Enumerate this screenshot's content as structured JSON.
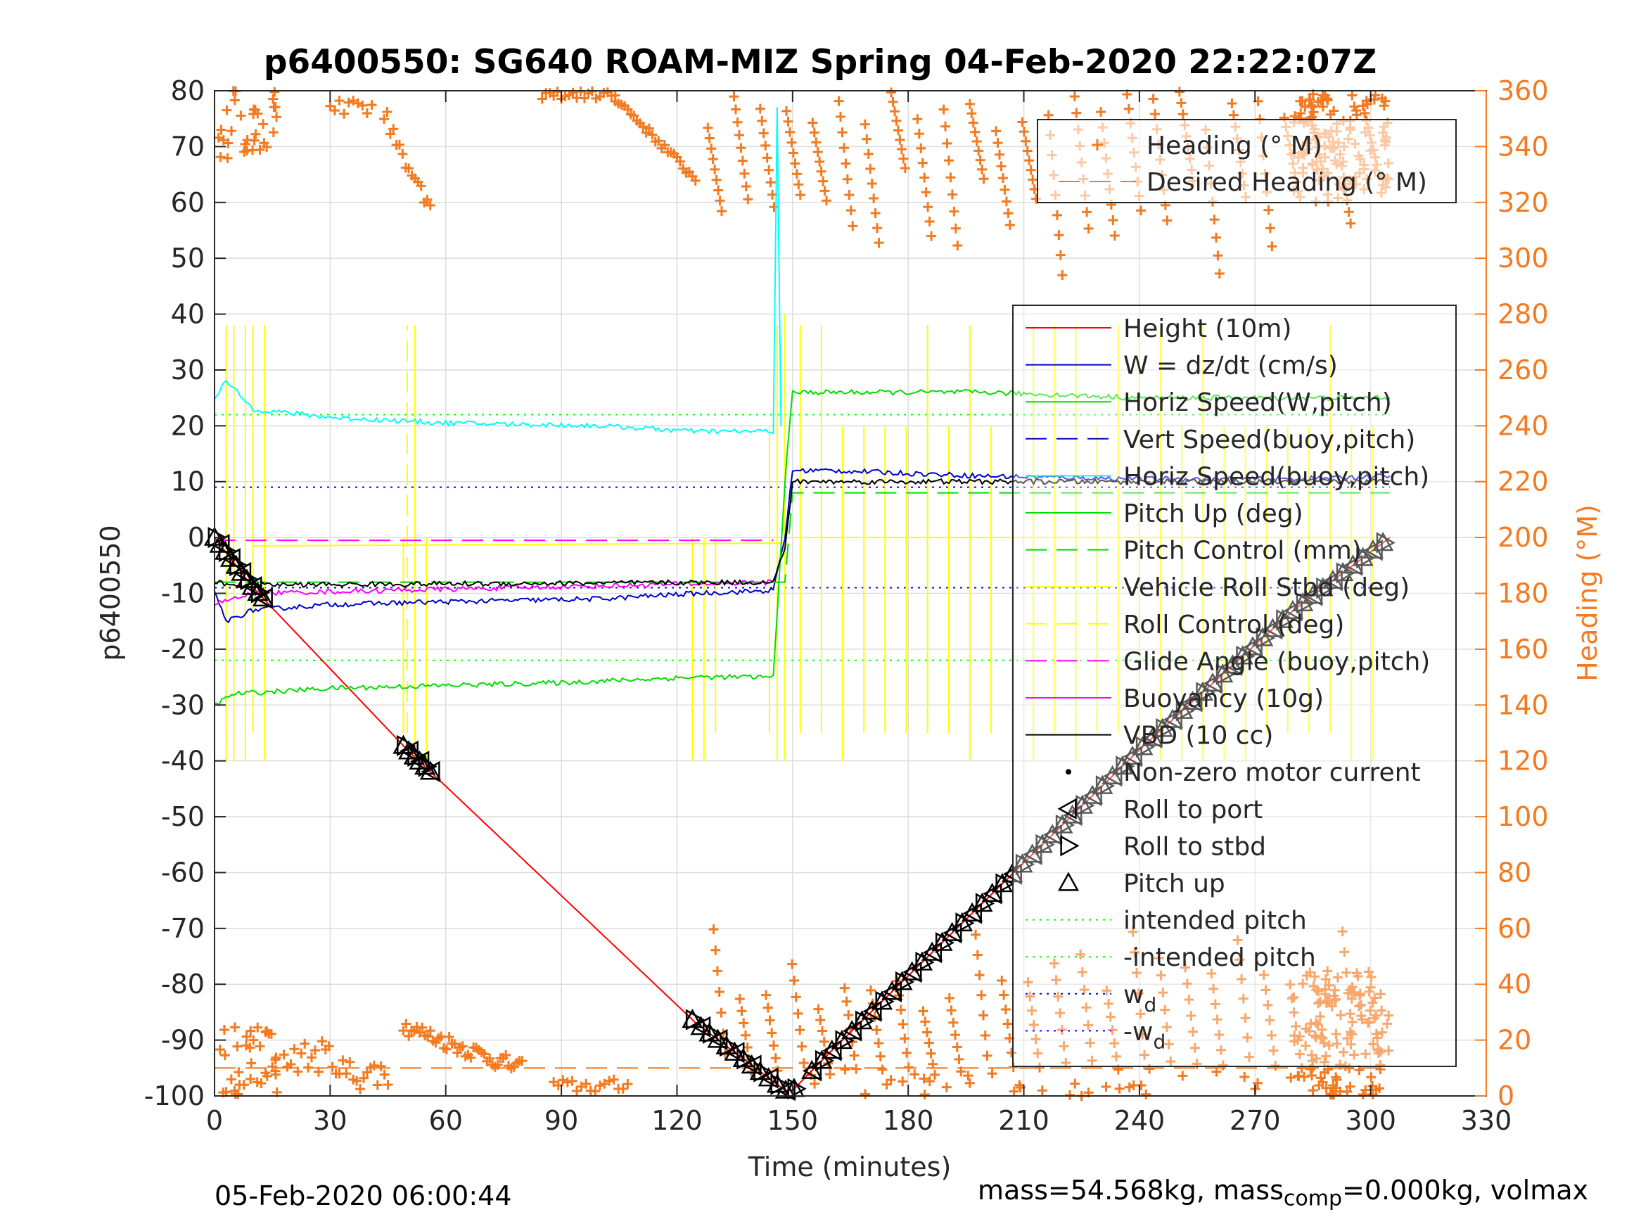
{
  "chart_data": {
    "type": "line",
    "title": "p6400550: SG640 ROAM-MIZ Spring 04-Feb-2020 22:22:07Z",
    "xlabel": "Time (minutes)",
    "ylabel": "p6400550",
    "y2label": "Heading (°M)",
    "xlim": [
      0,
      330
    ],
    "ylim": [
      -100,
      80
    ],
    "y2lim": [
      0,
      360
    ],
    "xticks": [
      0,
      30,
      60,
      90,
      120,
      150,
      180,
      210,
      240,
      270,
      300,
      330
    ],
    "yticks": [
      80,
      70,
      60,
      50,
      40,
      30,
      20,
      10,
      0,
      -10,
      -20,
      -30,
      -40,
      -50,
      -60,
      -70,
      -80,
      -90,
      -100
    ],
    "y2ticks": [
      360,
      340,
      320,
      300,
      280,
      260,
      240,
      220,
      200,
      180,
      160,
      140,
      120,
      100,
      80,
      60,
      40,
      20,
      0
    ],
    "grid": true,
    "legend_heading": [
      "Heading (° M)",
      "Desired Heading (° M)"
    ],
    "legend_main": [
      {
        "label": "Height (10m)",
        "color": "#ff0000",
        "style": "solid"
      },
      {
        "label": "W = dz/dt (cm/s)",
        "color": "#0000cc",
        "style": "solid"
      },
      {
        "label": "Horiz Speed(W,pitch)",
        "color": "#00dd00",
        "style": "solid"
      },
      {
        "label": "Vert Speed(buoy,pitch)",
        "color": "#0000cc",
        "style": "dashed"
      },
      {
        "label": "Horiz Speed(buoy,pitch)",
        "color": "#00ffff",
        "style": "solid"
      },
      {
        "label": "Pitch Up (deg)",
        "color": "#00dd00",
        "style": "solid"
      },
      {
        "label": "Pitch Control (mm)",
        "color": "#00dd00",
        "style": "dashed"
      },
      {
        "label": "Vehicle Roll Stbd (deg)",
        "color": "#ffff00",
        "style": "solid"
      },
      {
        "label": "Roll Control (deg)",
        "color": "#ffff00",
        "style": "dashed"
      },
      {
        "label": "Glide Angle (buoy,pitch)",
        "color": "#ff00ff",
        "style": "dashed"
      },
      {
        "label": "Buoyancy (10g)",
        "color": "#ff00ff",
        "style": "solid"
      },
      {
        "label": "VBD (10 cc)",
        "color": "#000000",
        "style": "solid"
      },
      {
        "label": "Non-zero motor current",
        "color": "#000000",
        "style": "dot"
      },
      {
        "label": "Roll to port",
        "color": "#000000",
        "style": "tri-left"
      },
      {
        "label": "Roll to stbd",
        "color": "#000000",
        "style": "tri-right"
      },
      {
        "label": "Pitch up",
        "color": "#000000",
        "style": "tri-up"
      },
      {
        "label": "intended pitch",
        "color": "#00ff00",
        "style": "dotted"
      },
      {
        "label": "-intended pitch",
        "color": "#00ff00",
        "style": "dotted"
      },
      {
        "label": "w",
        "sub": "d",
        "color": "#0000ff",
        "style": "dotted"
      },
      {
        "label": "-w",
        "sub": "d",
        "color": "#0000ff",
        "style": "dotted"
      }
    ],
    "series": [
      {
        "name": "Height (10m)",
        "color": "#ff0000",
        "x": [
          0,
          10,
          50,
          125,
          148,
          150,
          160,
          200,
          240,
          280,
          305
        ],
        "y": [
          0,
          -9,
          -38,
          -87,
          -99,
          -99,
          -92,
          -65,
          -38,
          -13,
          0
        ]
      },
      {
        "name": "W = dz/dt (cm/s)",
        "color": "#0000cc",
        "x": [
          0,
          3,
          10,
          30,
          60,
          100,
          125,
          145,
          148,
          150,
          160,
          200,
          240,
          280,
          305
        ],
        "y": [
          -10,
          -15,
          -13,
          -12,
          -11.5,
          -11,
          -10,
          -9.5,
          0,
          12,
          12,
          11,
          10.5,
          10.5,
          11
        ]
      },
      {
        "name": "Horiz Speed(W,pitch)",
        "color": "#00dd00",
        "x": [
          0,
          5,
          30,
          90,
          125,
          145,
          148,
          150,
          200,
          240,
          305
        ],
        "y": [
          -30,
          -28,
          -27,
          -26,
          -25,
          -25,
          10,
          26,
          26,
          25,
          25
        ]
      },
      {
        "name": "Horiz Speed(buoy,pitch)",
        "color": "#00ffff",
        "x": [
          0,
          3,
          10,
          30,
          60,
          100,
          125,
          145,
          146,
          147
        ],
        "y": [
          25,
          28,
          23,
          21.5,
          20.5,
          20,
          19,
          19,
          77,
          20
        ]
      },
      {
        "name": "Pitch Control (mm)",
        "color": "#00dd00",
        "x": [
          0,
          148,
          150,
          305
        ],
        "y": [
          -8,
          -8,
          8,
          8
        ]
      },
      {
        "name": "Glide Angle (buoy,pitch)",
        "color": "#ff00ff",
        "x": [
          0,
          145
        ],
        "y": [
          -0.5,
          -0.5
        ]
      },
      {
        "name": "Buoyancy (10g)",
        "color": "#ff00ff",
        "x": [
          0,
          10,
          145
        ],
        "y": [
          -12,
          -10,
          -8
        ]
      },
      {
        "name": "VBD (10 cc)",
        "color": "#000000",
        "x": [
          0,
          5,
          145,
          148,
          150,
          305
        ],
        "y": [
          -8,
          -8.5,
          -8,
          -2,
          10,
          10
        ]
      }
    ],
    "reference_lines": [
      {
        "name": "intended pitch",
        "y": 22,
        "color": "#00ff00"
      },
      {
        "name": "-intended pitch",
        "y": -22,
        "color": "#00ff00"
      },
      {
        "name": "w_d",
        "y": 9,
        "color": "#0000ff"
      },
      {
        "name": "-w_d",
        "y": -9,
        "color": "#0000ff"
      }
    ],
    "desired_heading_deg": 10
  },
  "footer": {
    "left": "05-Feb-2020 06:00:44",
    "mass_text": "mass=54.568kg, mass",
    "mass_sub": "comp",
    "mass_rest": "=0.000kg, volmax"
  },
  "colors": {
    "heading": "#f47a20",
    "grid": "#dcdcdc",
    "axis": "#262626"
  }
}
